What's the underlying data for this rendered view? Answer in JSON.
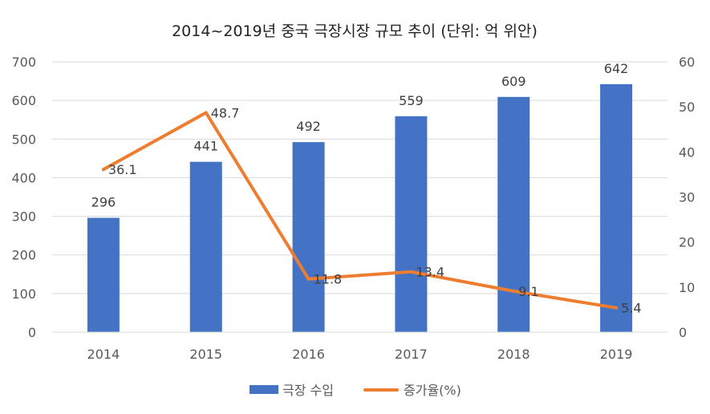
{
  "chart_data": {
    "type": "bar",
    "title": "2014~2019년 중국 극장시장 규모 추이 (단위: 억 위안)",
    "categories": [
      "2014",
      "2015",
      "2016",
      "2017",
      "2018",
      "2019"
    ],
    "series": [
      {
        "name": "극장 수입",
        "type": "bar",
        "axis": "left",
        "color": "#4472C4",
        "values": [
          296,
          441,
          492,
          559,
          609,
          642
        ],
        "labels": [
          "296",
          "441",
          "492",
          "559",
          "609",
          "642"
        ]
      },
      {
        "name": "증가율(%)",
        "type": "line",
        "axis": "right",
        "color": "#ED7D31",
        "values": [
          36.1,
          48.7,
          11.8,
          13.4,
          9.1,
          5.4
        ],
        "labels": [
          "36.1",
          "48.7",
          "11.8",
          "13.4",
          "9.1",
          "5.4"
        ]
      }
    ],
    "y_left": {
      "min": 0,
      "max": 700,
      "ticks": [
        "0",
        "100",
        "200",
        "300",
        "400",
        "500",
        "600",
        "700"
      ]
    },
    "y_right": {
      "min": 0,
      "max": 60,
      "ticks": [
        "0",
        "10",
        "20",
        "30",
        "40",
        "50",
        "60"
      ]
    },
    "grid": true,
    "legend": "bottom"
  }
}
